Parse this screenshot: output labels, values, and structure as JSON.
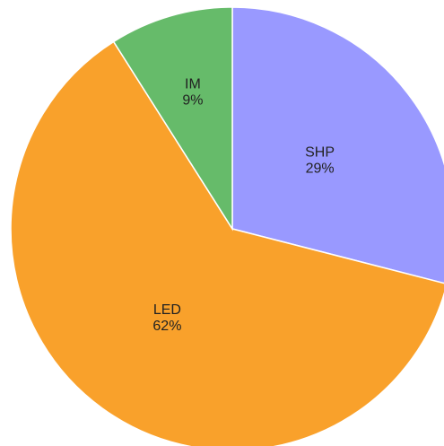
{
  "chart_data": {
    "type": "pie",
    "categories": [
      "SHP",
      "LED",
      "IM"
    ],
    "values": [
      29,
      62,
      9
    ],
    "value_labels": [
      "29%",
      "62%",
      "9%"
    ],
    "colors": [
      "#9999ff",
      "#f9a12b",
      "#66bb6a"
    ]
  }
}
